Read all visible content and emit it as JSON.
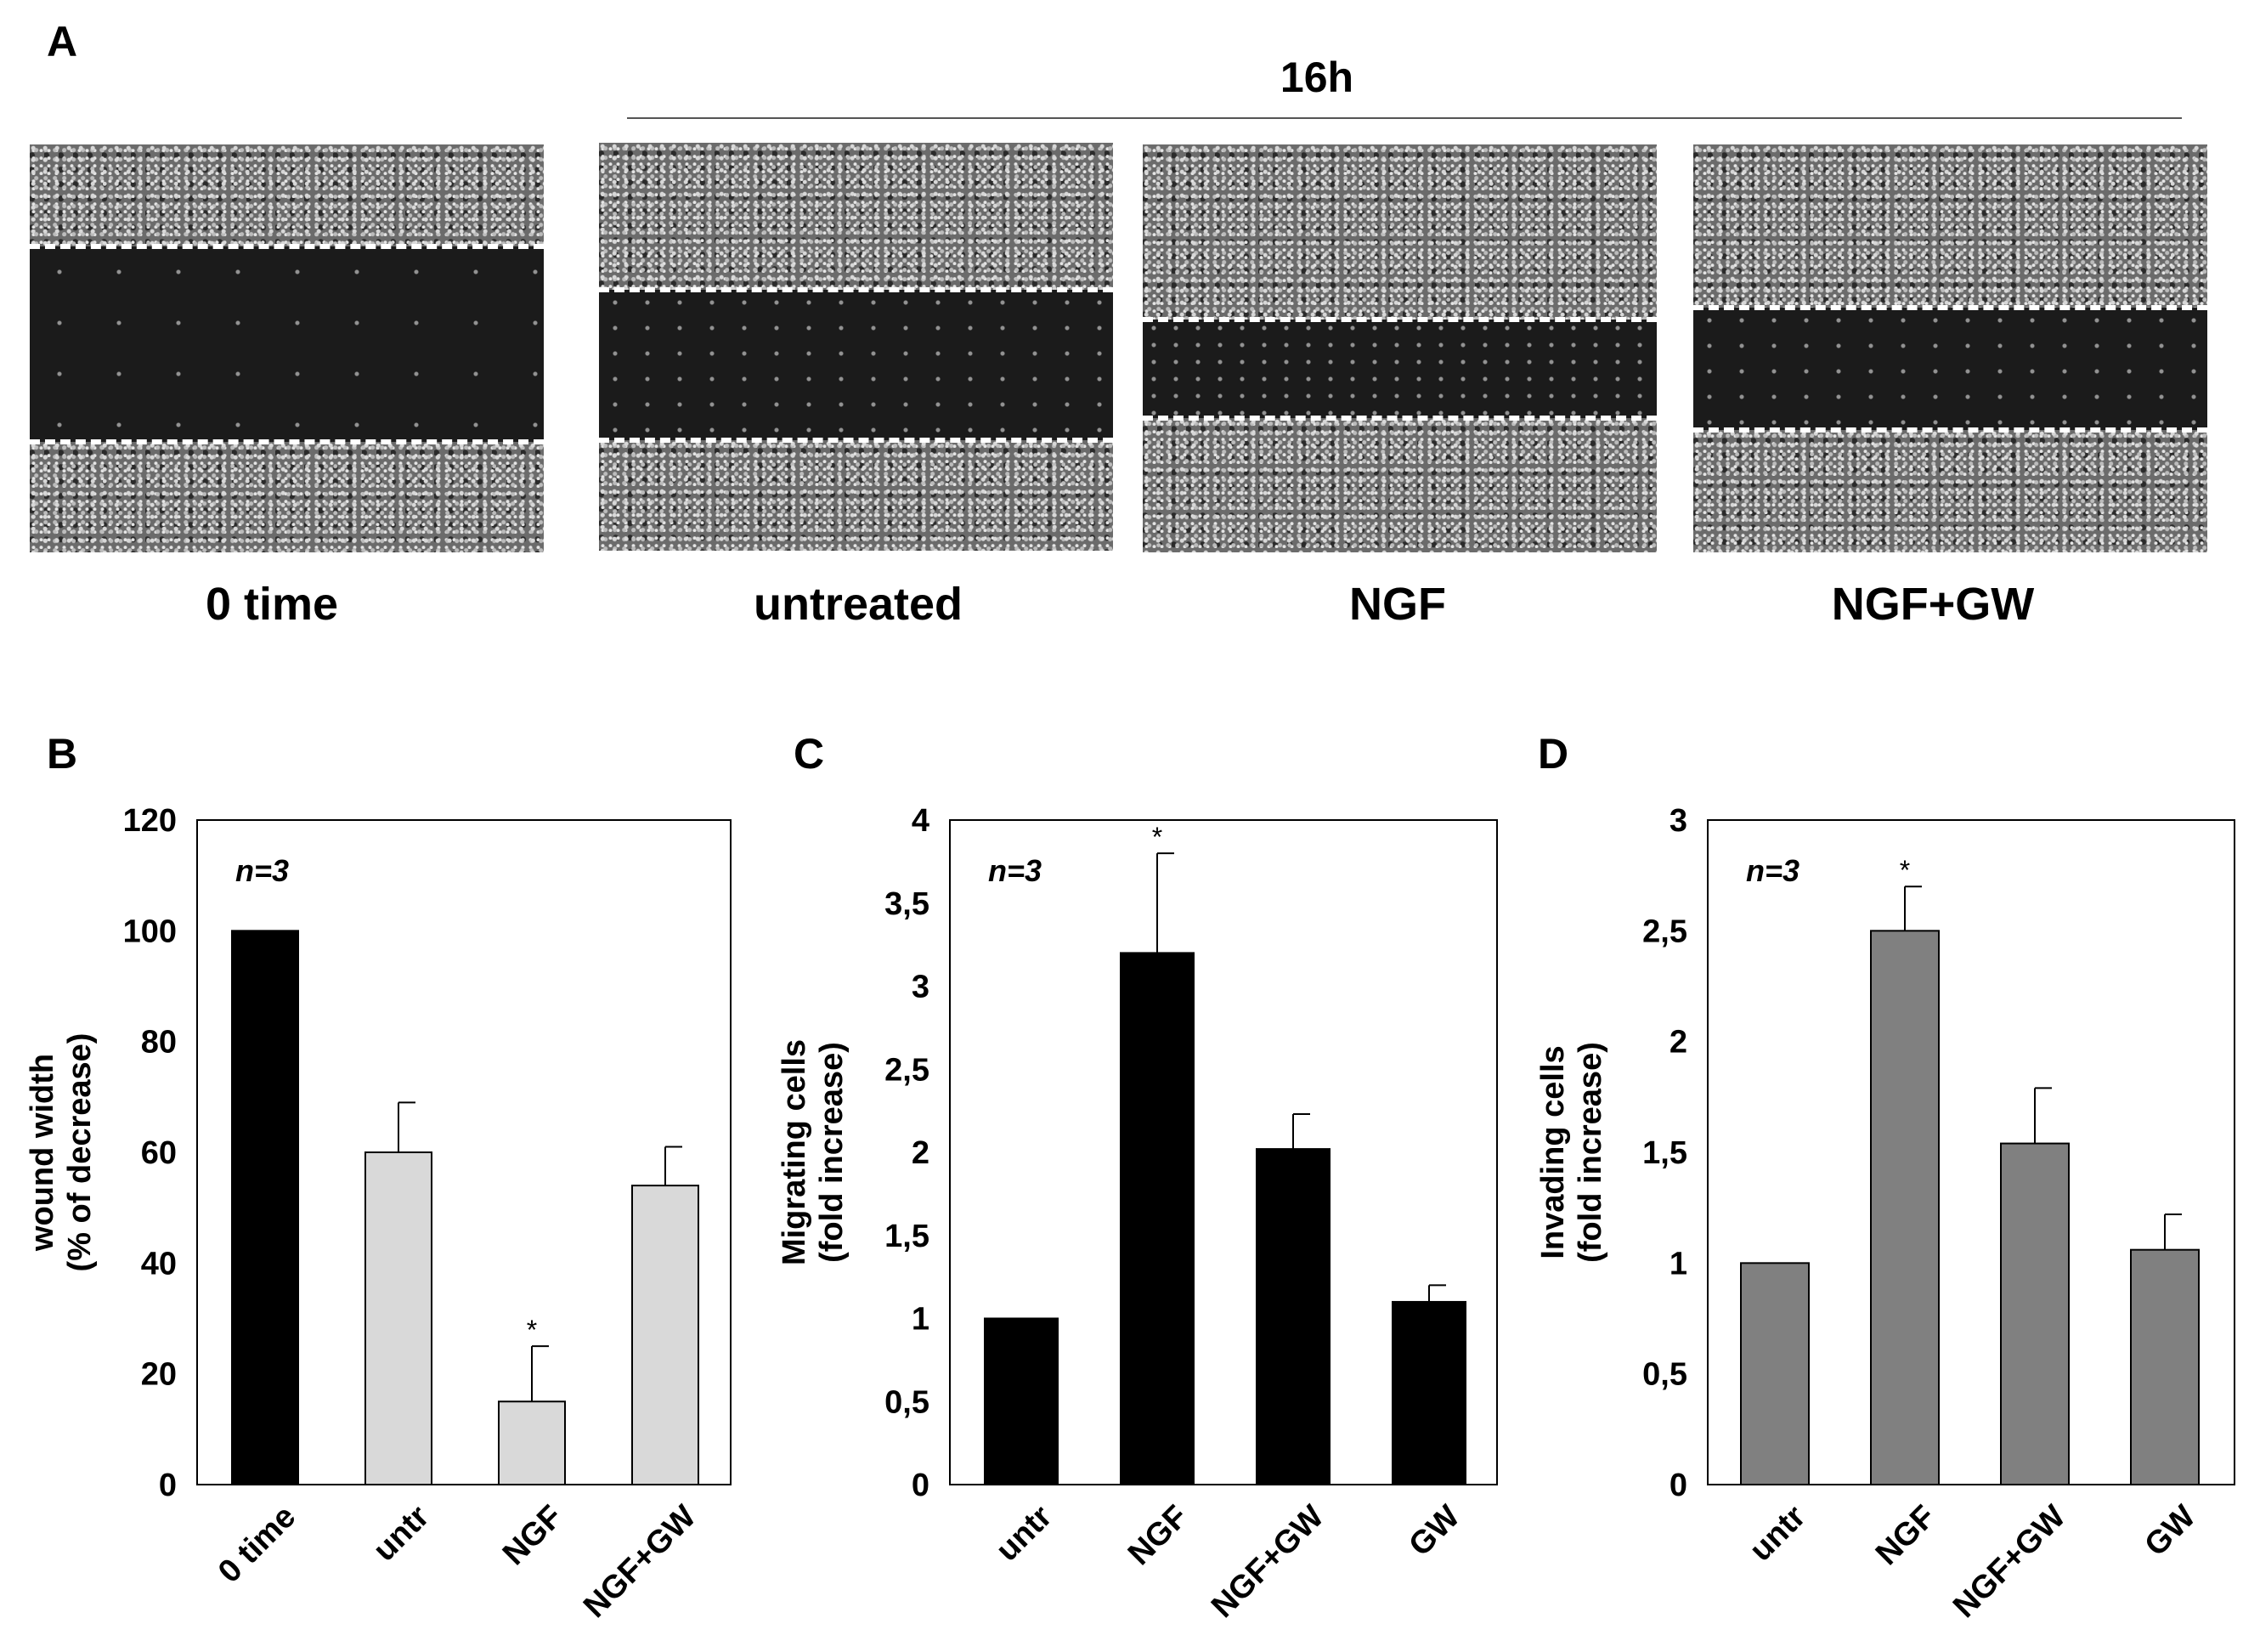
{
  "panel_a": {
    "letter": "A",
    "header": "16h",
    "images": [
      {
        "label": "0 time",
        "top_cover": 0.25,
        "bottom_cover": 0.27,
        "gap_density": "sparse"
      },
      {
        "label": "untreated",
        "top_cover": 0.36,
        "bottom_cover": 0.27,
        "gap_density": "medium"
      },
      {
        "label": "NGF",
        "top_cover": 0.43,
        "bottom_cover": 0.33,
        "gap_density": "dense"
      },
      {
        "label": "NGF+GW",
        "top_cover": 0.4,
        "bottom_cover": 0.3,
        "gap_density": "medium"
      }
    ]
  },
  "chart_data": [
    {
      "letter": "B",
      "type": "bar",
      "categories": [
        "0 time",
        "untr",
        "NGF",
        "NGF+GW"
      ],
      "values": [
        100,
        60,
        15,
        54
      ],
      "errors": [
        0,
        9,
        10,
        7
      ],
      "significant": [
        false,
        false,
        true,
        false
      ],
      "significance_marker": "*",
      "annotation": "n=3",
      "ylabel_lines": [
        "wound width",
        "(%  of decrease)"
      ],
      "ylim": [
        0,
        120
      ],
      "yticks": [
        "0",
        "20",
        "40",
        "60",
        "80",
        "100",
        "120"
      ],
      "bar_colors": [
        "#000000",
        "#d9d9d9",
        "#d9d9d9",
        "#d9d9d9"
      ]
    },
    {
      "letter": "C",
      "type": "bar",
      "categories": [
        "untr",
        "NGF",
        "NGF+GW",
        "GW"
      ],
      "values": [
        1,
        3.2,
        2.02,
        1.1
      ],
      "errors": [
        0,
        0.6,
        0.21,
        0.1
      ],
      "significant": [
        false,
        true,
        false,
        false
      ],
      "significance_marker": "*",
      "annotation": "n=3",
      "ylabel_lines": [
        "Migrating cells",
        "(fold increase)"
      ],
      "ylim": [
        0,
        4
      ],
      "yticks": [
        "0",
        "0,5",
        "1",
        "1,5",
        "2",
        "2,5",
        "3",
        "3,5",
        "4"
      ],
      "bar_colors": [
        "#000000",
        "#000000",
        "#000000",
        "#000000"
      ]
    },
    {
      "letter": "D",
      "type": "bar",
      "categories": [
        "untr",
        "NGF",
        "NGF+GW",
        "GW"
      ],
      "values": [
        1,
        2.5,
        1.54,
        1.06
      ],
      "errors": [
        0,
        0.2,
        0.25,
        0.16
      ],
      "significant": [
        false,
        true,
        false,
        false
      ],
      "significance_marker": "*",
      "annotation": "n=3",
      "ylabel_lines": [
        "Invading cells",
        "(fold increase)"
      ],
      "ylim": [
        0,
        3
      ],
      "yticks": [
        "0",
        "0,5",
        "1",
        "1,5",
        "2",
        "2,5",
        "3"
      ],
      "bar_colors": [
        "#808080",
        "#808080",
        "#808080",
        "#808080"
      ]
    }
  ]
}
